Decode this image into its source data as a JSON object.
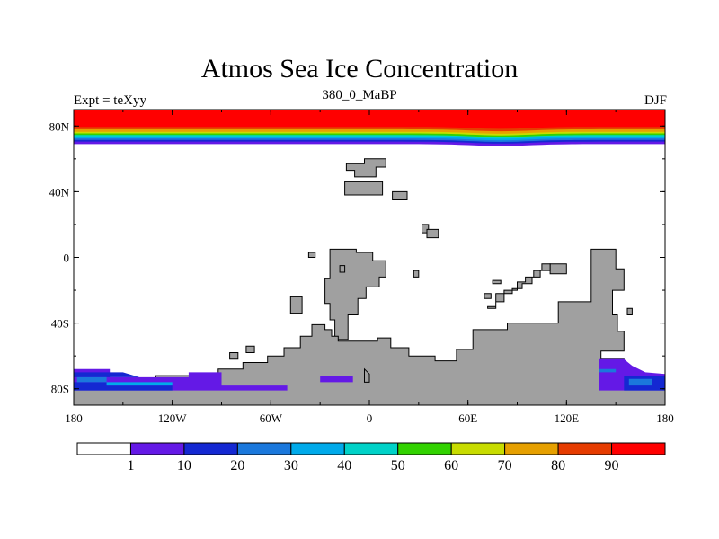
{
  "header": {
    "title": "Atmos Sea Ice Concentration",
    "left": "Expt = teXyy",
    "center": "380_0_MaBP",
    "right": "DJF"
  },
  "map": {
    "lon_range": [
      -180,
      180
    ],
    "lat_range": [
      -90,
      90
    ],
    "x_ticks": [
      {
        "lon": -180,
        "label": "180"
      },
      {
        "lon": -120,
        "label": "120W"
      },
      {
        "lon": -60,
        "label": "60W"
      },
      {
        "lon": 0,
        "label": "0"
      },
      {
        "lon": 60,
        "label": "60E"
      },
      {
        "lon": 120,
        "label": "120E"
      },
      {
        "lon": 180,
        "label": "180"
      }
    ],
    "y_ticks": [
      {
        "lat": 80,
        "label": "80N"
      },
      {
        "lat": 40,
        "label": "40N"
      },
      {
        "lat": 0,
        "label": "0"
      },
      {
        "lat": -40,
        "label": "40S"
      },
      {
        "lat": -80,
        "label": "80S"
      }
    ],
    "land_color": "#a0a0a0",
    "ocean_color": "#ffffff",
    "land_polygons": [
      [
        [
          -14,
          57
        ],
        [
          -3,
          57
        ],
        [
          -3,
          60
        ],
        [
          10,
          60
        ],
        [
          10,
          55
        ],
        [
          4,
          55
        ],
        [
          4,
          49
        ],
        [
          -9,
          49
        ],
        [
          -9,
          53
        ],
        [
          -14,
          53
        ]
      ],
      [
        [
          -15,
          46
        ],
        [
          8,
          46
        ],
        [
          8,
          38
        ],
        [
          -15,
          38
        ]
      ],
      [
        [
          14,
          40
        ],
        [
          23,
          40
        ],
        [
          23,
          35
        ],
        [
          14,
          35
        ]
      ],
      [
        [
          32,
          20
        ],
        [
          36,
          20
        ],
        [
          36,
          15
        ],
        [
          32,
          15
        ]
      ],
      [
        [
          35,
          17
        ],
        [
          42,
          17
        ],
        [
          42,
          12
        ],
        [
          35,
          12
        ]
      ],
      [
        [
          -24,
          5
        ],
        [
          -8,
          5
        ],
        [
          -8,
          3
        ],
        [
          2,
          3
        ],
        [
          2,
          -2
        ],
        [
          10,
          -2
        ],
        [
          10,
          -12
        ],
        [
          6,
          -12
        ],
        [
          6,
          -18
        ],
        [
          -2,
          -18
        ],
        [
          -2,
          -25
        ],
        [
          -7,
          -25
        ],
        [
          -7,
          -35
        ],
        [
          -13,
          -35
        ],
        [
          -13,
          -50
        ],
        [
          -21,
          -50
        ],
        [
          -21,
          -38
        ],
        [
          -24,
          -38
        ],
        [
          -24,
          -28
        ],
        [
          -27,
          -28
        ],
        [
          -27,
          -13
        ],
        [
          -24,
          -13
        ]
      ],
      [
        [
          -37,
          3
        ],
        [
          -33,
          3
        ],
        [
          -33,
          0
        ],
        [
          -37,
          0
        ]
      ],
      [
        [
          -48,
          -24
        ],
        [
          -41,
          -24
        ],
        [
          -41,
          -34
        ],
        [
          -48,
          -34
        ]
      ],
      [
        [
          -18,
          -5
        ],
        [
          -15,
          -5
        ],
        [
          -15,
          -9
        ],
        [
          -18,
          -9
        ]
      ],
      [
        [
          27,
          -8
        ],
        [
          30,
          -8
        ],
        [
          30,
          -12
        ],
        [
          27,
          -12
        ]
      ],
      [
        [
          -17,
          -51
        ],
        [
          -19,
          -51
        ],
        [
          -19,
          -48
        ],
        [
          -23,
          -48
        ],
        [
          -23,
          -44
        ],
        [
          -27,
          -44
        ],
        [
          -27,
          -41
        ],
        [
          -35,
          -41
        ],
        [
          -35,
          -48
        ],
        [
          -42,
          -48
        ],
        [
          -42,
          -55
        ],
        [
          -52,
          -55
        ],
        [
          -52,
          -60
        ],
        [
          -62,
          -60
        ],
        [
          -62,
          -64
        ],
        [
          -77,
          -64
        ],
        [
          -77,
          -68
        ],
        [
          -92,
          -68
        ],
        [
          -92,
          -72
        ],
        [
          -130,
          -72
        ],
        [
          -130,
          -74
        ],
        [
          -180,
          -74
        ],
        [
          -180,
          -90
        ],
        [
          180,
          -90
        ],
        [
          180,
          -74
        ],
        [
          162,
          -74
        ],
        [
          162,
          -70
        ],
        [
          155,
          -70
        ],
        [
          155,
          -62
        ],
        [
          141,
          -62
        ],
        [
          141,
          -57
        ],
        [
          155,
          -57
        ],
        [
          155,
          -45
        ],
        [
          151,
          -45
        ],
        [
          151,
          -35
        ],
        [
          148,
          -35
        ],
        [
          148,
          -20
        ],
        [
          155,
          -20
        ],
        [
          155,
          -7
        ],
        [
          150,
          -7
        ],
        [
          150,
          5
        ],
        [
          135,
          5
        ],
        [
          135,
          -27
        ],
        [
          115,
          -27
        ],
        [
          115,
          -40
        ],
        [
          84,
          -40
        ],
        [
          84,
          -44
        ],
        [
          63,
          -44
        ],
        [
          63,
          -56
        ],
        [
          53,
          -56
        ],
        [
          53,
          -63
        ],
        [
          40,
          -63
        ],
        [
          40,
          -60
        ],
        [
          24,
          -60
        ],
        [
          24,
          -55
        ],
        [
          13,
          -55
        ],
        [
          13,
          -49
        ],
        [
          5,
          -49
        ],
        [
          5,
          -51
        ]
      ],
      [
        [
          70,
          -22
        ],
        [
          74,
          -22
        ],
        [
          74,
          -25
        ],
        [
          70,
          -25
        ]
      ],
      [
        [
          75,
          -14
        ],
        [
          80,
          -14
        ],
        [
          80,
          -16
        ],
        [
          75,
          -16
        ]
      ],
      [
        [
          110,
          -4
        ],
        [
          120,
          -4
        ],
        [
          120,
          -10
        ],
        [
          110,
          -10
        ]
      ],
      [
        [
          72,
          -30
        ],
        [
          77,
          -30
        ],
        [
          77,
          -22
        ],
        [
          82,
          -22
        ],
        [
          82,
          -20
        ],
        [
          90,
          -20
        ],
        [
          90,
          -15
        ],
        [
          95,
          -15
        ],
        [
          95,
          -12
        ],
        [
          100,
          -12
        ],
        [
          100,
          -8
        ],
        [
          105,
          -8
        ],
        [
          105,
          -4
        ],
        [
          110,
          -4
        ],
        [
          110,
          -8
        ],
        [
          104,
          -8
        ],
        [
          104,
          -12
        ],
        [
          99,
          -12
        ],
        [
          99,
          -16
        ],
        [
          93,
          -16
        ],
        [
          93,
          -19
        ],
        [
          87,
          -19
        ],
        [
          87,
          -22
        ],
        [
          82,
          -22
        ],
        [
          82,
          -27
        ],
        [
          77,
          -27
        ],
        [
          77,
          -31
        ],
        [
          72,
          -31
        ]
      ],
      [
        [
          157,
          -31
        ],
        [
          160,
          -31
        ],
        [
          160,
          -35
        ],
        [
          157,
          -35
        ]
      ],
      [
        [
          -75,
          -54
        ],
        [
          -70,
          -54
        ],
        [
          -70,
          -58
        ],
        [
          -75,
          -58
        ]
      ],
      [
        [
          -85,
          -58
        ],
        [
          -80,
          -58
        ],
        [
          -80,
          -62
        ],
        [
          -85,
          -62
        ]
      ],
      [
        [
          -3,
          -68
        ],
        [
          -3,
          -71
        ],
        [
          -3,
          -76
        ],
        [
          0,
          -76
        ],
        [
          0,
          -71
        ]
      ]
    ],
    "ice_band_north": {
      "colors": [
        "#ff0000",
        "#ff0000",
        "#e63c00",
        "#e6a000",
        "#c8dc00",
        "#32d200",
        "#00d2c8",
        "#00aaea",
        "#1b78dc",
        "#1428d2",
        "#6419e6"
      ],
      "edges_lat": [
        90,
        81.5,
        79.5,
        78.0,
        76.5,
        75.5,
        74.5,
        73.5,
        72.5,
        71.5,
        70.5,
        69.0
      ]
    },
    "ice_south": [
      {
        "color": "#6419e6",
        "poly": [
          [
            -180,
            -68
          ],
          [
            -158,
            -68
          ],
          [
            -158,
            -73
          ],
          [
            -110,
            -73
          ],
          [
            -110,
            -70
          ],
          [
            -90,
            -70
          ],
          [
            -90,
            -78
          ],
          [
            -50,
            -78
          ],
          [
            -50,
            -81
          ],
          [
            -180,
            -81
          ]
        ]
      },
      {
        "color": "#6419e6",
        "poly": [
          [
            -30,
            -72
          ],
          [
            -10,
            -72
          ],
          [
            -10,
            -76
          ],
          [
            -30,
            -76
          ]
        ]
      },
      {
        "color": "#6419e6",
        "poly": [
          [
            140,
            -62
          ],
          [
            155,
            -62
          ],
          [
            160,
            -66
          ],
          [
            168,
            -70
          ],
          [
            180,
            -71
          ],
          [
            180,
            -81
          ],
          [
            140,
            -81
          ],
          [
            140,
            -68
          ]
        ]
      },
      {
        "color": "#1428d2",
        "poly": [
          [
            -180,
            -70
          ],
          [
            -150,
            -70
          ],
          [
            -140,
            -73
          ],
          [
            -180,
            -73
          ]
        ]
      },
      {
        "color": "#1428d2",
        "poly": [
          [
            -180,
            -76
          ],
          [
            -160,
            -76
          ],
          [
            -160,
            -78
          ],
          [
            -120,
            -78
          ],
          [
            -120,
            -81
          ],
          [
            -180,
            -81
          ]
        ]
      },
      {
        "color": "#1b78dc",
        "poly": [
          [
            -178,
            -73
          ],
          [
            -160,
            -73
          ],
          [
            -160,
            -76
          ],
          [
            -178,
            -76
          ]
        ]
      },
      {
        "color": "#00aaea",
        "poly": [
          [
            -160,
            -76
          ],
          [
            -120,
            -76
          ],
          [
            -120,
            -78
          ],
          [
            -160,
            -78
          ]
        ]
      },
      {
        "color": "#1b78dc",
        "poly": [
          [
            140,
            -68
          ],
          [
            150,
            -68
          ],
          [
            150,
            -70
          ],
          [
            140,
            -70
          ]
        ]
      },
      {
        "color": "#1428d2",
        "poly": [
          [
            155,
            -72
          ],
          [
            180,
            -72
          ],
          [
            180,
            -81
          ],
          [
            155,
            -81
          ]
        ]
      },
      {
        "color": "#1b78dc",
        "poly": [
          [
            158,
            -74
          ],
          [
            172,
            -74
          ],
          [
            172,
            -78
          ],
          [
            158,
            -78
          ]
        ]
      }
    ]
  },
  "colorbar": {
    "colors": [
      "#ffffff",
      "#6419e6",
      "#1428d2",
      "#1b78dc",
      "#00aaea",
      "#00d2c8",
      "#32d200",
      "#c8dc00",
      "#e6a000",
      "#e63c00",
      "#ff0000"
    ],
    "labels": [
      "1",
      "10",
      "20",
      "30",
      "40",
      "50",
      "60",
      "70",
      "80",
      "90"
    ]
  }
}
